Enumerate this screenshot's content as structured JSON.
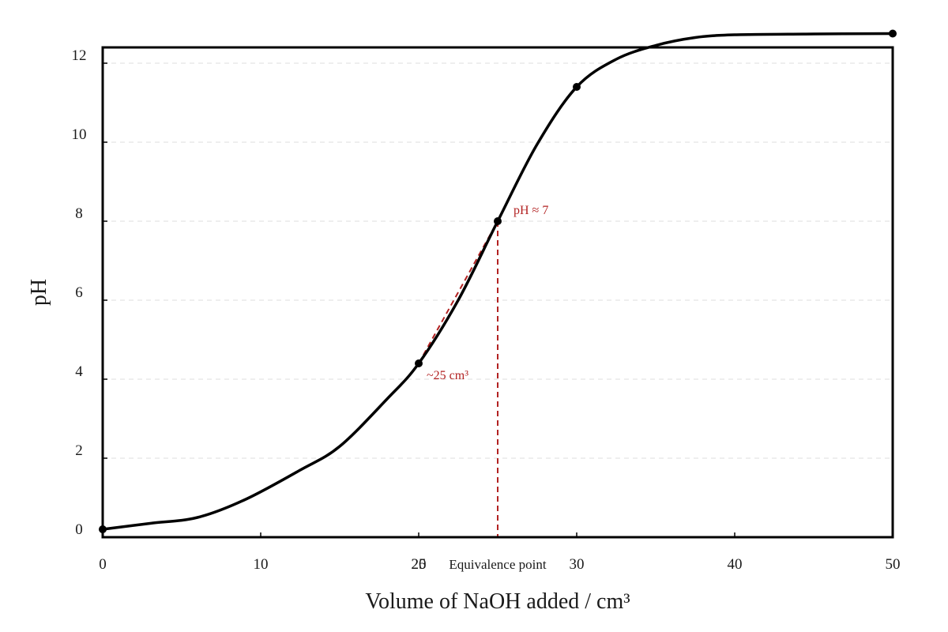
{
  "chart_data": {
    "type": "line",
    "xlabel": "Volume of NaOH added / cm³",
    "ylabel": "pH",
    "xlim": [
      0,
      50
    ],
    "ylim": [
      0,
      12.4
    ],
    "x_ticks": [
      "0",
      "10",
      "20",
      "30",
      "40",
      "50"
    ],
    "y_ticks": [
      "0",
      "2",
      "4",
      "6",
      "8",
      "10",
      "12"
    ],
    "grid": "horizontal dashed",
    "line_color": "#000000",
    "annotation_color": "#b22222",
    "series": [
      {
        "values": [
          [
            0,
            0.2
          ],
          [
            3,
            0.35
          ],
          [
            6,
            0.5
          ],
          [
            9,
            0.95
          ],
          [
            12.5,
            1.7
          ],
          [
            15,
            2.3
          ],
          [
            18,
            3.5
          ],
          [
            20,
            4.4
          ],
          [
            22.5,
            6.0
          ],
          [
            25,
            8.0
          ],
          [
            27.5,
            9.95
          ],
          [
            30,
            11.4
          ],
          [
            32.5,
            12.1
          ],
          [
            35,
            12.45
          ],
          [
            37.5,
            12.65
          ],
          [
            40,
            12.72
          ],
          [
            45,
            12.74
          ],
          [
            50,
            12.75
          ]
        ],
        "markers": [
          [
            0,
            0.2
          ],
          [
            20,
            4.4
          ],
          [
            25,
            8.0
          ],
          [
            30,
            11.4
          ],
          [
            50,
            12.75
          ]
        ]
      }
    ],
    "annotations": [
      {
        "text": "pH ≈ 7",
        "x": 25,
        "y": 8.0
      },
      {
        "text": "~25 cm³",
        "x": 20,
        "y": 4.4
      },
      {
        "text": "Equivalence point",
        "x": 25,
        "y": 0
      },
      {
        "text": "25",
        "x": 20,
        "y": 0
      }
    ]
  }
}
